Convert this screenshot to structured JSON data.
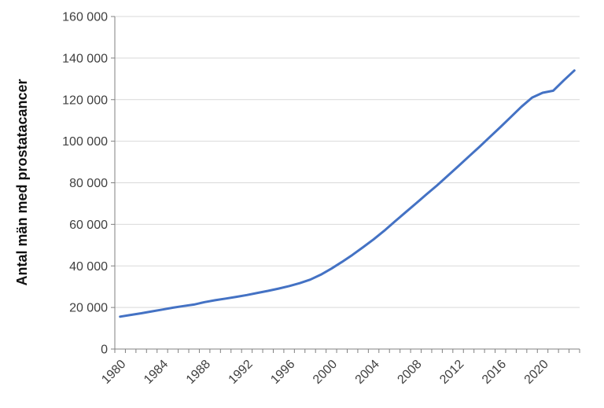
{
  "page": {
    "background_color": "#ffffff"
  },
  "chart_data": {
    "type": "line",
    "title": "",
    "xlabel": "",
    "ylabel": "Antal män med prostatacancer",
    "series_name": "Antal män med prostatacancer",
    "x": [
      1980,
      1981,
      1982,
      1983,
      1984,
      1985,
      1986,
      1987,
      1988,
      1989,
      1990,
      1991,
      1992,
      1993,
      1994,
      1995,
      1996,
      1997,
      1998,
      1999,
      2000,
      2001,
      2002,
      2003,
      2004,
      2005,
      2006,
      2007,
      2008,
      2009,
      2010,
      2011,
      2012,
      2013,
      2014,
      2015,
      2016,
      2017,
      2018,
      2019,
      2020,
      2021,
      2022,
      2023
    ],
    "values": [
      15600,
      16400,
      17200,
      18100,
      19000,
      19900,
      20700,
      21400,
      22600,
      23500,
      24300,
      25100,
      26000,
      27000,
      28000,
      29100,
      30300,
      31700,
      33400,
      35800,
      38700,
      41900,
      45300,
      49000,
      52800,
      56900,
      61300,
      65700,
      70000,
      74400,
      78700,
      83300,
      87900,
      92600,
      97200,
      102000,
      106800,
      111700,
      116600,
      121000,
      123300,
      124300,
      129300,
      134000
    ],
    "ylim": [
      0,
      160000
    ],
    "ytick_step": 20000,
    "ytick_labels": [
      "0",
      "20 000",
      "40 000",
      "60 000",
      "80 000",
      "100 000",
      "120 000",
      "140 000",
      "160 000"
    ],
    "xtick_label_years": [
      1980,
      1984,
      1988,
      1992,
      1996,
      2000,
      2004,
      2008,
      2012,
      2016,
      2020
    ],
    "x_minor_ticks": "every year",
    "grid": "horizontal only",
    "legend_position": "none",
    "line_color": "#4472C4",
    "gridline_color": "#D9D9D9",
    "axis_color": "#808080",
    "tick_label_color": "#404040",
    "axis_title_color": "#111111"
  }
}
